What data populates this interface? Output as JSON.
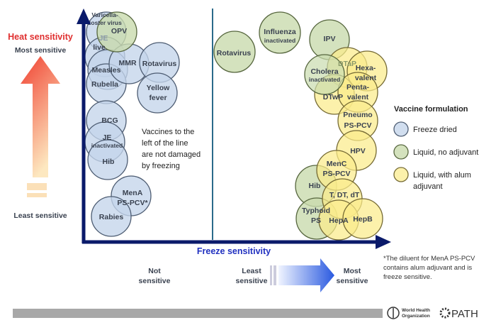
{
  "heat_axis": {
    "title": "Heat sensitivity",
    "top": "Most sensitive",
    "bottom": "Least sensitive",
    "color": "#e03030"
  },
  "freeze_axis": {
    "title": "Freeze sensitivity",
    "left": "Not sensitive",
    "middle": "Least sensitive",
    "right": "Most sensitive",
    "color": "#2030c0"
  },
  "divider_note": "Vaccines to the left of the line are not damaged by freezing",
  "legend": {
    "title": "Vaccine formulation",
    "items": [
      {
        "label": "Freeze dried",
        "color": "#c4d5ea"
      },
      {
        "label": "Liquid, no adjuvant",
        "color": "#c9dbae"
      },
      {
        "label": "Liquid, with alum adjuvant",
        "color": "#fbeb8a"
      }
    ]
  },
  "footnote": "*The diluent for MenA PS-PCV contains alum adjuvant and is freeze sensitive.",
  "logos": {
    "who": "World Health Organization",
    "path": "PATH"
  },
  "vaccines": {
    "varicella": [
      "Varicella-",
      "zoster virus"
    ],
    "je_live": [
      "JE",
      "live"
    ],
    "measles": "Measles",
    "rubella": "Rubella",
    "mmr": "MMR",
    "rotavirus_fd": "Rotavirus",
    "yellow_fever": [
      "Yellow",
      "fever"
    ],
    "bcg": "BCG",
    "je_inact": [
      "JE",
      "inactivated"
    ],
    "hib_fd": "Hib",
    "mena": [
      "MenA",
      "PS-PCV*"
    ],
    "rabies": "Rabies",
    "opv": "OPV",
    "rotavirus_lq": "Rotavirus",
    "influenza": [
      "Influenza",
      "inactivated"
    ],
    "ipv": "IPV",
    "cholera": [
      "Cholera",
      "inactivated"
    ],
    "hib_lq": "Hib",
    "typhoid": [
      "Typhoid",
      "PS"
    ],
    "dtap": "DTaP",
    "hexa": [
      "Hexa-",
      "valent"
    ],
    "penta": [
      "Penta-",
      "valent"
    ],
    "dtwp": "DTwP",
    "pneumo": [
      "Pneumo",
      "PS-PCV"
    ],
    "hpv": "HPV",
    "menc": [
      "MenC",
      "PS-PCV"
    ],
    "tdt": "T, DT, dT",
    "hepa": "HepA",
    "hepb": "HepB"
  }
}
